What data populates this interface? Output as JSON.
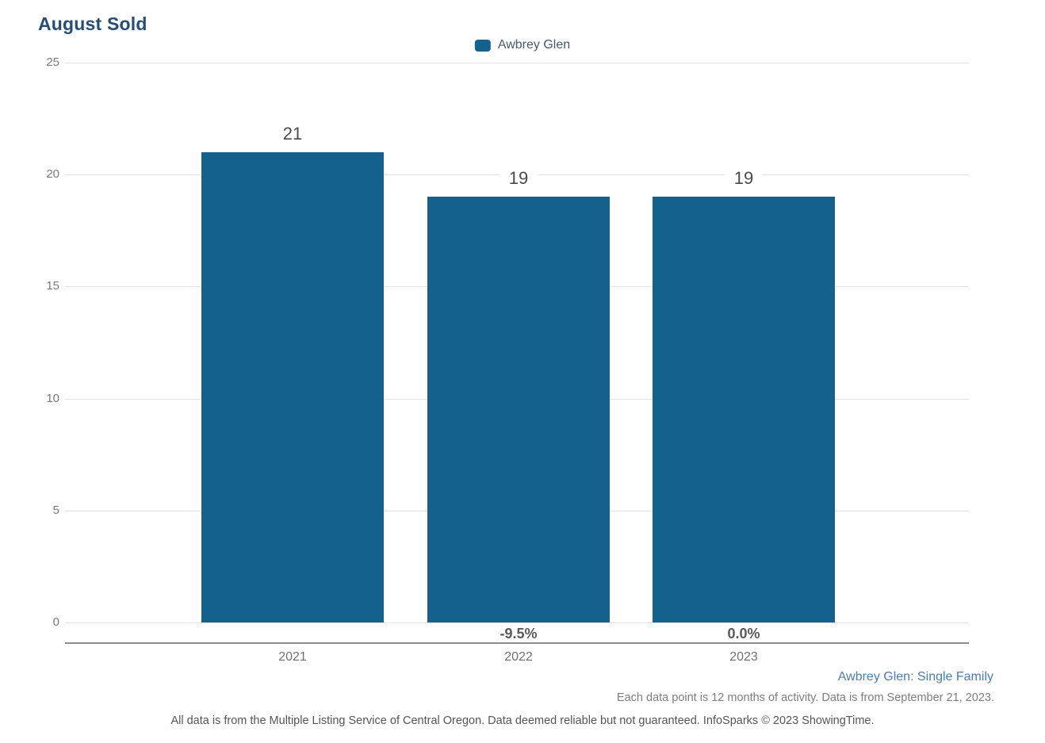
{
  "title": "August Sold",
  "chart_data": {
    "type": "bar",
    "title": "August Sold",
    "categories": [
      "2021",
      "2022",
      "2023"
    ],
    "series": [
      {
        "name": "Awbrey Glen",
        "color": "#15618e",
        "values": [
          21,
          19,
          19
        ],
        "pct_change": [
          null,
          "-9.5%",
          "0.0%"
        ]
      }
    ],
    "ylim": [
      0,
      25
    ],
    "yticks": [
      0,
      5,
      10,
      15,
      20,
      25
    ],
    "grid": true,
    "legend_position": "top-center",
    "value_labels_shown": true
  },
  "colors": {
    "bar": "#15618e",
    "title": "#254e77",
    "legend_text": "#45586f",
    "gridline": "#e3e3e3",
    "axis_line": "#8c8c8c",
    "footer_link_blue": "#4d7cae"
  },
  "footer": {
    "series_note": "Awbrey Glen: Single Family",
    "data_note": "Each data point is 12 months of activity. Data is from September 21, 2023.",
    "disclaimer": "All data is from the Multiple Listing Service of Central Oregon. Data deemed reliable but not guaranteed. InfoSparks © 2023 ShowingTime."
  }
}
